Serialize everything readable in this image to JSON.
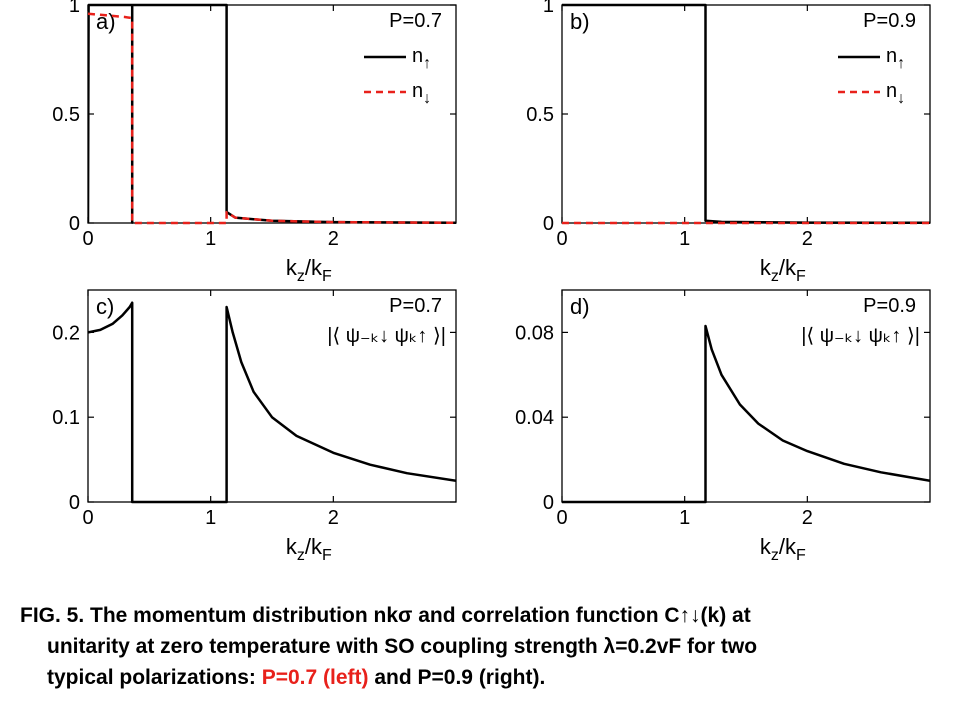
{
  "chart_data": [
    {
      "type": "line",
      "panel_label": "a)",
      "annotation": "P=0.7",
      "xlabel": "k",
      "xlabel_sub": "z",
      "xlabel_mid": "/k",
      "xlabel_sub2": "F",
      "xlim": [
        0,
        3
      ],
      "ylim": [
        0,
        1.0
      ],
      "xticks": [
        "0",
        "1",
        "2"
      ],
      "xtick_values": [
        0,
        1,
        2
      ],
      "yticks": [
        "0",
        "0.5",
        "1"
      ],
      "ytick_values": [
        0,
        0.5,
        1.0
      ],
      "legend": {
        "placement": "top-right"
      },
      "series": [
        {
          "name": "n↑",
          "legend_main": "n",
          "legend_sub": "↑",
          "color": "#000000",
          "dash": "solid",
          "x": [
            0,
            0.005,
            0.36,
            0.36,
            0.36,
            1.13,
            1.13,
            1.13,
            1.2,
            1.5,
            2.0,
            3.0
          ],
          "y": [
            0,
            1.0,
            1.0,
            0.002,
            1.0,
            1.0,
            1.0,
            0.05,
            0.025,
            0.01,
            0.004,
            0.001
          ]
        },
        {
          "name": "n↓",
          "legend_main": "n",
          "legend_sub": "↓",
          "color": "#e8211b",
          "dash": "dashed",
          "x": [
            0,
            0.1,
            0.2,
            0.3,
            0.36,
            0.36,
            1.13,
            1.13,
            1.2,
            1.5,
            2.0,
            3.0
          ],
          "y": [
            0.96,
            0.955,
            0.95,
            0.945,
            0.94,
            0.0,
            0.0,
            0.05,
            0.025,
            0.01,
            0.004,
            0.001
          ]
        }
      ]
    },
    {
      "type": "line",
      "panel_label": "b)",
      "annotation": "P=0.9",
      "xlabel": "k",
      "xlabel_sub": "z",
      "xlabel_mid": "/k",
      "xlabel_sub2": "F",
      "xlim": [
        0,
        3
      ],
      "ylim": [
        0,
        1.0
      ],
      "xticks": [
        "0",
        "1",
        "2"
      ],
      "xtick_values": [
        0,
        1,
        2
      ],
      "yticks": [
        "0",
        "0.5",
        "1"
      ],
      "ytick_values": [
        0,
        0.5,
        1.0
      ],
      "legend": {
        "placement": "top-right"
      },
      "series": [
        {
          "name": "n↑",
          "legend_main": "n",
          "legend_sub": "↑",
          "color": "#000000",
          "dash": "solid",
          "x": [
            0,
            1.17,
            1.17,
            1.3,
            2.0,
            3.0
          ],
          "y": [
            1.0,
            1.0,
            0.01,
            0.005,
            0.002,
            0.001
          ]
        },
        {
          "name": "n↓",
          "legend_main": "n",
          "legend_sub": "↓",
          "color": "#e8211b",
          "dash": "dashed",
          "x": [
            0,
            1.17,
            3.0
          ],
          "y": [
            0.0,
            0.0,
            0.0
          ]
        }
      ]
    },
    {
      "type": "line",
      "panel_label": "c)",
      "annotation": "P=0.7",
      "formula": "|⟨ ψ₋ₖ↓ ψₖ↑ ⟩|",
      "xlabel": "k",
      "xlabel_sub": "z",
      "xlabel_mid": "/k",
      "xlabel_sub2": "F",
      "xlim": [
        0,
        3
      ],
      "ylim": [
        0,
        0.25
      ],
      "xticks": [
        "0",
        "1",
        "2"
      ],
      "xtick_values": [
        0,
        1,
        2
      ],
      "yticks": [
        "0",
        "0.1",
        "0.2"
      ],
      "ytick_values": [
        0,
        0.1,
        0.2
      ],
      "series": [
        {
          "name": "|⟨ψ₋ₖ↓ψₖ↑⟩|",
          "color": "#000000",
          "dash": "solid",
          "x": [
            0,
            0.1,
            0.2,
            0.28,
            0.34,
            0.36,
            0.36,
            1.13,
            1.13,
            1.18,
            1.25,
            1.35,
            1.5,
            1.7,
            2.0,
            2.3,
            2.6,
            3.0
          ],
          "y": [
            0.2,
            0.203,
            0.21,
            0.22,
            0.23,
            0.235,
            0.0,
            0.0,
            0.23,
            0.2,
            0.165,
            0.13,
            0.1,
            0.078,
            0.058,
            0.044,
            0.034,
            0.025
          ]
        }
      ]
    },
    {
      "type": "line",
      "panel_label": "d)",
      "annotation": "P=0.9",
      "formula": "|⟨ ψ₋ₖ↓ ψₖ↑ ⟩|",
      "xlabel": "k",
      "xlabel_sub": "z",
      "xlabel_mid": "/k",
      "xlabel_sub2": "F",
      "xlim": [
        0,
        3
      ],
      "ylim": [
        0,
        0.1
      ],
      "xticks": [
        "0",
        "1",
        "2"
      ],
      "xtick_values": [
        0,
        1,
        2
      ],
      "yticks": [
        "0",
        "0.04",
        "0.08"
      ],
      "ytick_values": [
        0,
        0.04,
        0.08
      ],
      "series": [
        {
          "name": "|⟨ψ₋ₖ↓ψₖ↑⟩|",
          "color": "#000000",
          "dash": "solid",
          "x": [
            0,
            1.17,
            1.17,
            1.22,
            1.3,
            1.45,
            1.6,
            1.8,
            2.0,
            2.3,
            2.6,
            3.0
          ],
          "y": [
            0.0,
            0.0,
            0.083,
            0.072,
            0.06,
            0.046,
            0.037,
            0.029,
            0.024,
            0.018,
            0.014,
            0.01
          ]
        }
      ]
    }
  ],
  "caption": {
    "line1": "FIG. 5. The momentum distribution nkσ and correlation function C↑↓(k) at",
    "line2": "unitarity at zero temperature with SO coupling strength λ=0.2vF for two",
    "line3_prefix": "typical polarizations: ",
    "line3_red": "P=0.7 (left)",
    "line3_suffix": " and P=0.9 (right)."
  }
}
